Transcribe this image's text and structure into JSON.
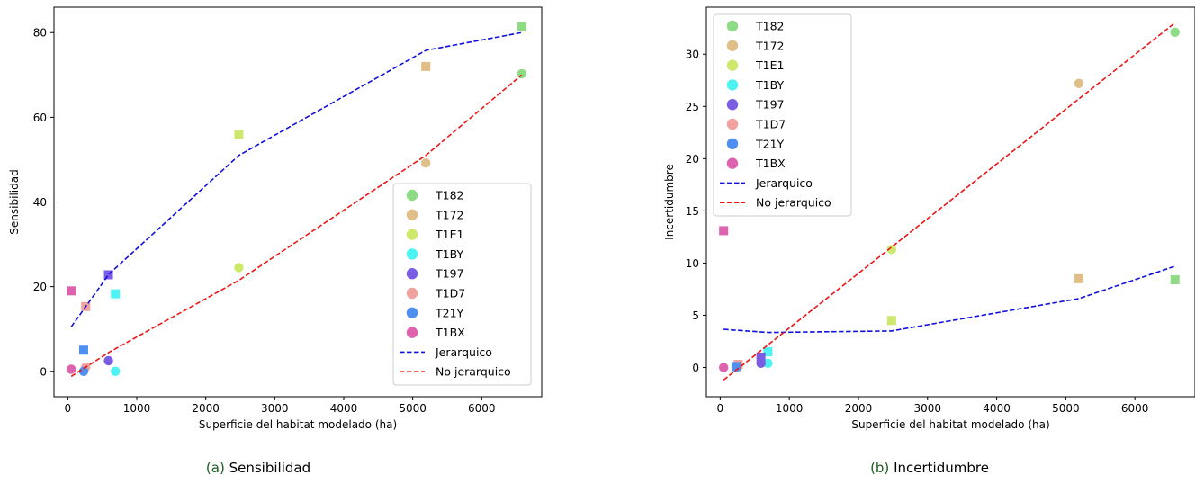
{
  "chart_data": [
    {
      "type": "scatter",
      "caption_tag": "(a)",
      "caption_text": "Sensibilidad",
      "xlabel": "Superficie del habitat modelado (ha)",
      "ylabel": "Sensibilidad",
      "xlim": [
        -200,
        6870
      ],
      "ylim": [
        -6,
        86
      ],
      "xticks": [
        0,
        1000,
        2000,
        3000,
        4000,
        5000,
        6000
      ],
      "yticks": [
        0,
        20,
        40,
        60,
        80
      ],
      "legend_position": "lower-right",
      "points": [
        {
          "series": "T182",
          "marker": "square",
          "x": 6580,
          "y": 81.5
        },
        {
          "series": "T182",
          "marker": "circle",
          "x": 6580,
          "y": 70.3
        },
        {
          "series": "T172",
          "marker": "square",
          "x": 5190,
          "y": 72.0
        },
        {
          "series": "T172",
          "marker": "circle",
          "x": 5190,
          "y": 49.2
        },
        {
          "series": "T1E1",
          "marker": "square",
          "x": 2480,
          "y": 56.0
        },
        {
          "series": "T1E1",
          "marker": "circle",
          "x": 2480,
          "y": 24.5
        },
        {
          "series": "T1BY",
          "marker": "square",
          "x": 690,
          "y": 18.3
        },
        {
          "series": "T1BY",
          "marker": "circle",
          "x": 690,
          "y": 0.0
        },
        {
          "series": "T197",
          "marker": "square",
          "x": 590,
          "y": 22.8
        },
        {
          "series": "T197",
          "marker": "circle",
          "x": 590,
          "y": 2.5
        },
        {
          "series": "T1D7",
          "marker": "square",
          "x": 260,
          "y": 15.3
        },
        {
          "series": "T1D7",
          "marker": "circle",
          "x": 260,
          "y": 1.0
        },
        {
          "series": "T21Y",
          "marker": "square",
          "x": 230,
          "y": 5.0
        },
        {
          "series": "T21Y",
          "marker": "circle",
          "x": 230,
          "y": 0.0
        },
        {
          "series": "T1BX",
          "marker": "square",
          "x": 50,
          "y": 19.0
        },
        {
          "series": "T1BX",
          "marker": "circle",
          "x": 50,
          "y": 0.5
        }
      ],
      "lines": [
        {
          "name": "Jerarquico",
          "x": [
            50,
            600,
            2480,
            5190,
            6580
          ],
          "y": [
            10.5,
            23.0,
            51.0,
            75.8,
            80.0
          ]
        },
        {
          "name": "No jerarquico",
          "x": [
            50,
            600,
            2480,
            5190,
            6580
          ],
          "y": [
            -1.2,
            4.5,
            21.5,
            51.0,
            70.0
          ]
        }
      ]
    },
    {
      "type": "scatter",
      "caption_tag": "(b)",
      "caption_text": "Incertidumbre",
      "xlabel": "Superficie del habitat modelado (ha)",
      "ylabel": "Incertidumbre",
      "xlim": [
        -200,
        6870
      ],
      "ylim": [
        -2.8,
        34.5
      ],
      "xticks": [
        0,
        1000,
        2000,
        3000,
        4000,
        5000,
        6000
      ],
      "yticks": [
        0,
        5,
        10,
        15,
        20,
        25,
        30
      ],
      "legend_position": "upper-left",
      "points": [
        {
          "series": "T182",
          "marker": "circle",
          "x": 6580,
          "y": 32.1
        },
        {
          "series": "T182",
          "marker": "square",
          "x": 6580,
          "y": 8.4
        },
        {
          "series": "T172",
          "marker": "circle",
          "x": 5190,
          "y": 27.2
        },
        {
          "series": "T172",
          "marker": "square",
          "x": 5190,
          "y": 8.5
        },
        {
          "series": "T1E1",
          "marker": "circle",
          "x": 2480,
          "y": 11.3
        },
        {
          "series": "T1E1",
          "marker": "square",
          "x": 2480,
          "y": 4.5
        },
        {
          "series": "T1BY",
          "marker": "square",
          "x": 690,
          "y": 1.5
        },
        {
          "series": "T1BY",
          "marker": "circle",
          "x": 690,
          "y": 0.4
        },
        {
          "series": "T197",
          "marker": "square",
          "x": 590,
          "y": 1.0
        },
        {
          "series": "T197",
          "marker": "circle",
          "x": 590,
          "y": 0.4
        },
        {
          "series": "T1D7",
          "marker": "square",
          "x": 260,
          "y": 0.3
        },
        {
          "series": "T1D7",
          "marker": "circle",
          "x": 260,
          "y": 0.1
        },
        {
          "series": "T21Y",
          "marker": "square",
          "x": 230,
          "y": 0.1
        },
        {
          "series": "T21Y",
          "marker": "circle",
          "x": 230,
          "y": 0.0
        },
        {
          "series": "T1BX",
          "marker": "square",
          "x": 50,
          "y": 13.1
        },
        {
          "series": "T1BX",
          "marker": "circle",
          "x": 50,
          "y": 0.0
        }
      ],
      "lines": [
        {
          "name": "Jerarquico",
          "x": [
            50,
            700,
            2480,
            5190,
            6580
          ],
          "y": [
            3.65,
            3.35,
            3.5,
            6.6,
            9.7
          ]
        },
        {
          "name": "No jerarquico",
          "x": [
            50,
            6580
          ],
          "y": [
            -1.2,
            33.0
          ]
        }
      ]
    }
  ],
  "series_colors": {
    "T182": "#8ddb85",
    "T172": "#e0be88",
    "T1E1": "#cde86d",
    "T1BY": "#4df2f2",
    "T197": "#7b5de3",
    "T1D7": "#efa29e",
    "T21Y": "#4e8ff0",
    "T1BX": "#de62ae"
  },
  "line_colors": {
    "Jerarquico": "#1010dd",
    "No jerarquico": "#ee1515"
  },
  "legend_order": [
    "T182",
    "T172",
    "T1E1",
    "T1BY",
    "T197",
    "T1D7",
    "T21Y",
    "T1BX",
    "Jerarquico",
    "No jerarquico"
  ]
}
